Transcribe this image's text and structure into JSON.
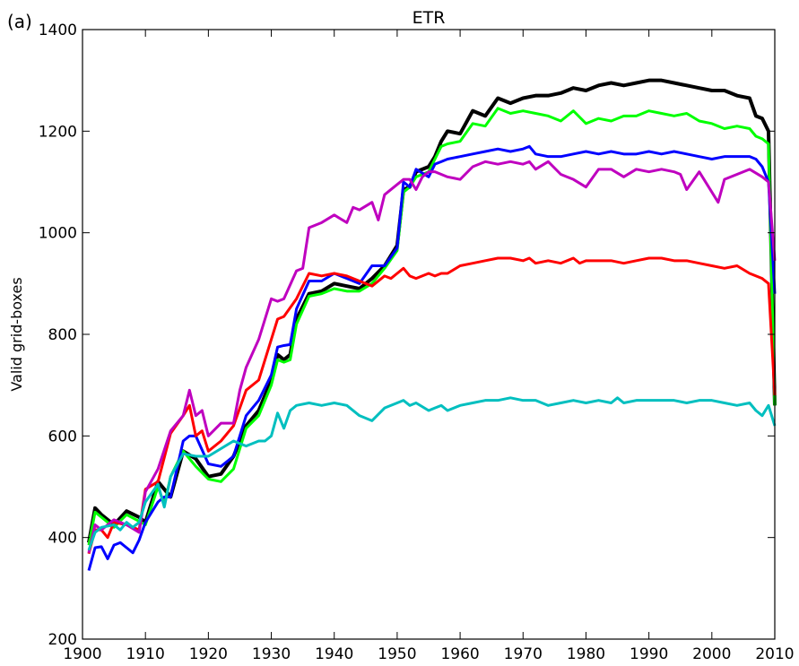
{
  "panel_label": "(a)",
  "chart_data": {
    "type": "line",
    "title": "ETR",
    "xlabel": "",
    "ylabel": "Valid grid-boxes",
    "xlim": [
      1900,
      2010
    ],
    "ylim": [
      200,
      1400
    ],
    "xticks": [
      1900,
      1910,
      1920,
      1930,
      1940,
      1950,
      1960,
      1970,
      1980,
      1990,
      2000,
      2010
    ],
    "yticks": [
      200,
      400,
      600,
      800,
      1000,
      1200,
      1400
    ],
    "grid": false,
    "legend": "none",
    "series": [
      {
        "color": "#000000",
        "x": [
          1901,
          1902,
          1903,
          1905,
          1907,
          1909,
          1910,
          1912,
          1914,
          1916,
          1918,
          1920,
          1922,
          1924,
          1926,
          1928,
          1930,
          1931,
          1932,
          1933,
          1934,
          1936,
          1938,
          1940,
          1942,
          1944,
          1946,
          1948,
          1950,
          1951,
          1952,
          1953,
          1955,
          1956,
          1957,
          1958,
          1960,
          1962,
          1964,
          1966,
          1968,
          1970,
          1972,
          1974,
          1976,
          1978,
          1980,
          1982,
          1984,
          1986,
          1988,
          1990,
          1992,
          1994,
          1996,
          1998,
          2000,
          2002,
          2004,
          2006,
          2007,
          2008,
          2009,
          2010
        ],
        "values": [
          390,
          458,
          445,
          425,
          452,
          440,
          430,
          510,
          480,
          570,
          555,
          520,
          525,
          560,
          620,
          650,
          710,
          760,
          750,
          760,
          830,
          880,
          885,
          900,
          895,
          890,
          910,
          935,
          975,
          1085,
          1090,
          1120,
          1130,
          1150,
          1180,
          1200,
          1195,
          1240,
          1230,
          1265,
          1255,
          1265,
          1270,
          1270,
          1275,
          1285,
          1280,
          1290,
          1295,
          1290,
          1295,
          1300,
          1300,
          1295,
          1290,
          1285,
          1280,
          1280,
          1270,
          1265,
          1230,
          1225,
          1200,
          660
        ]
      },
      {
        "color": "#00ff00",
        "x": [
          1901,
          1902,
          1903,
          1905,
          1907,
          1909,
          1910,
          1912,
          1913,
          1914,
          1916,
          1918,
          1920,
          1922,
          1924,
          1926,
          1928,
          1930,
          1931,
          1932,
          1933,
          1934,
          1936,
          1938,
          1940,
          1942,
          1944,
          1946,
          1948,
          1950,
          1951,
          1952,
          1953,
          1955,
          1956,
          1957,
          1958,
          1960,
          1962,
          1964,
          1966,
          1968,
          1970,
          1972,
          1974,
          1976,
          1978,
          1980,
          1982,
          1984,
          1986,
          1988,
          1990,
          1992,
          1994,
          1996,
          1998,
          2000,
          2002,
          2004,
          2006,
          2007,
          2008,
          2009,
          2010
        ],
        "values": [
          385,
          450,
          440,
          420,
          445,
          432,
          425,
          500,
          465,
          520,
          570,
          540,
          515,
          510,
          535,
          615,
          640,
          700,
          750,
          745,
          750,
          820,
          875,
          880,
          890,
          885,
          885,
          900,
          930,
          965,
          1080,
          1090,
          1110,
          1120,
          1145,
          1170,
          1175,
          1180,
          1215,
          1210,
          1245,
          1235,
          1240,
          1235,
          1230,
          1220,
          1240,
          1215,
          1225,
          1220,
          1230,
          1230,
          1240,
          1235,
          1230,
          1235,
          1220,
          1215,
          1205,
          1210,
          1205,
          1190,
          1185,
          1175,
          660
        ]
      },
      {
        "color": "#0000ff",
        "x": [
          1901,
          1902,
          1903,
          1904,
          1905,
          1906,
          1907,
          1908,
          1909,
          1910,
          1912,
          1913,
          1914,
          1916,
          1917,
          1918,
          1920,
          1922,
          1924,
          1926,
          1928,
          1930,
          1931,
          1932,
          1933,
          1934,
          1936,
          1938,
          1940,
          1942,
          1944,
          1946,
          1948,
          1950,
          1951,
          1952,
          1953,
          1955,
          1956,
          1957,
          1958,
          1960,
          1962,
          1964,
          1966,
          1968,
          1970,
          1971,
          1972,
          1974,
          1976,
          1978,
          1980,
          1982,
          1984,
          1986,
          1988,
          1990,
          1992,
          1994,
          1996,
          1998,
          2000,
          2002,
          2004,
          2006,
          2007,
          2008,
          2009,
          2010
        ],
        "values": [
          335,
          380,
          382,
          358,
          385,
          390,
          380,
          370,
          395,
          430,
          470,
          480,
          480,
          590,
          600,
          600,
          545,
          540,
          560,
          640,
          670,
          720,
          775,
          778,
          780,
          850,
          905,
          905,
          920,
          910,
          900,
          935,
          935,
          970,
          1100,
          1090,
          1125,
          1110,
          1135,
          1140,
          1145,
          1150,
          1155,
          1160,
          1165,
          1160,
          1165,
          1170,
          1155,
          1150,
          1150,
          1155,
          1160,
          1155,
          1160,
          1155,
          1155,
          1160,
          1155,
          1160,
          1155,
          1150,
          1145,
          1150,
          1150,
          1150,
          1145,
          1130,
          1100,
          880
        ]
      },
      {
        "color": "#ff0000",
        "x": [
          1901,
          1902,
          1903,
          1904,
          1905,
          1907,
          1909,
          1910,
          1912,
          1914,
          1916,
          1917,
          1918,
          1919,
          1920,
          1922,
          1924,
          1926,
          1928,
          1930,
          1931,
          1932,
          1934,
          1936,
          1938,
          1940,
          1942,
          1944,
          1946,
          1948,
          1949,
          1950,
          1951,
          1952,
          1953,
          1955,
          1956,
          1957,
          1958,
          1960,
          1962,
          1964,
          1966,
          1968,
          1970,
          1971,
          1972,
          1974,
          1976,
          1978,
          1979,
          1980,
          1982,
          1984,
          1986,
          1988,
          1990,
          1992,
          1994,
          1996,
          1998,
          2000,
          2002,
          2004,
          2006,
          2008,
          2009,
          2010
        ],
        "values": [
          368,
          415,
          415,
          400,
          430,
          425,
          415,
          495,
          510,
          605,
          640,
          660,
          600,
          610,
          570,
          590,
          620,
          690,
          710,
          790,
          830,
          835,
          870,
          920,
          915,
          920,
          915,
          905,
          895,
          915,
          910,
          920,
          930,
          915,
          910,
          920,
          915,
          920,
          920,
          935,
          940,
          945,
          950,
          950,
          945,
          950,
          940,
          945,
          940,
          950,
          940,
          945,
          945,
          945,
          940,
          945,
          950,
          950,
          945,
          945,
          940,
          935,
          930,
          935,
          920,
          910,
          900,
          680
        ]
      },
      {
        "color": "#bf00bf",
        "x": [
          1901,
          1902,
          1903,
          1905,
          1907,
          1909,
          1910,
          1912,
          1914,
          1916,
          1917,
          1918,
          1919,
          1920,
          1922,
          1924,
          1925,
          1926,
          1928,
          1930,
          1931,
          1932,
          1934,
          1935,
          1936,
          1938,
          1940,
          1942,
          1943,
          1944,
          1946,
          1947,
          1948,
          1950,
          1951,
          1952,
          1953,
          1954,
          1955,
          1956,
          1957,
          1958,
          1960,
          1962,
          1964,
          1966,
          1968,
          1970,
          1971,
          1972,
          1974,
          1976,
          1977,
          1978,
          1980,
          1982,
          1984,
          1986,
          1988,
          1990,
          1992,
          1994,
          1995,
          1996,
          1998,
          2000,
          2001,
          2002,
          2004,
          2006,
          2008,
          2009,
          2010
        ],
        "values": [
          370,
          425,
          415,
          435,
          425,
          410,
          490,
          535,
          610,
          640,
          690,
          640,
          650,
          600,
          625,
          625,
          690,
          735,
          790,
          870,
          865,
          870,
          925,
          930,
          1010,
          1020,
          1035,
          1020,
          1050,
          1045,
          1060,
          1025,
          1075,
          1095,
          1105,
          1105,
          1085,
          1110,
          1120,
          1120,
          1115,
          1110,
          1105,
          1130,
          1140,
          1135,
          1140,
          1135,
          1140,
          1125,
          1140,
          1115,
          1110,
          1105,
          1090,
          1125,
          1125,
          1110,
          1125,
          1120,
          1125,
          1120,
          1115,
          1085,
          1120,
          1080,
          1060,
          1105,
          1115,
          1125,
          1110,
          1100,
          945
        ]
      },
      {
        "color": "#00bfbf",
        "x": [
          1901,
          1902,
          1903,
          1905,
          1906,
          1907,
          1908,
          1909,
          1910,
          1912,
          1913,
          1914,
          1916,
          1918,
          1920,
          1922,
          1924,
          1926,
          1928,
          1929,
          1930,
          1931,
          1932,
          1933,
          1934,
          1936,
          1938,
          1940,
          1942,
          1944,
          1946,
          1948,
          1950,
          1951,
          1952,
          1953,
          1955,
          1956,
          1957,
          1958,
          1960,
          1962,
          1964,
          1966,
          1968,
          1970,
          1972,
          1974,
          1976,
          1978,
          1980,
          1982,
          1984,
          1985,
          1986,
          1988,
          1990,
          1992,
          1994,
          1996,
          1998,
          2000,
          2002,
          2004,
          2006,
          2007,
          2008,
          2009,
          2010
        ],
        "values": [
          375,
          410,
          420,
          425,
          415,
          430,
          420,
          430,
          470,
          505,
          460,
          520,
          565,
          560,
          560,
          575,
          590,
          580,
          590,
          590,
          600,
          645,
          615,
          650,
          660,
          665,
          660,
          665,
          660,
          640,
          630,
          655,
          665,
          670,
          660,
          665,
          650,
          655,
          660,
          650,
          660,
          665,
          670,
          670,
          675,
          670,
          670,
          660,
          665,
          670,
          665,
          670,
          665,
          675,
          665,
          670,
          670,
          670,
          670,
          665,
          670,
          670,
          665,
          660,
          665,
          650,
          640,
          660,
          620
        ]
      }
    ]
  }
}
